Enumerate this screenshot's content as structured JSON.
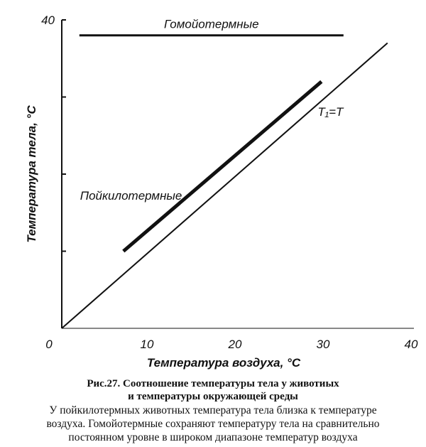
{
  "chart_data": {
    "type": "line",
    "xlabel": "Температура воздуха, °С",
    "ylabel": "Температура тела, °С",
    "xlim": [
      0,
      40
    ],
    "ylim": [
      0,
      40
    ],
    "xticks": [
      0,
      10,
      20,
      30,
      40
    ],
    "yticks": [
      40
    ],
    "yminor_ticks": [
      10,
      20,
      30
    ],
    "series": [
      {
        "name": "Гомойотермные",
        "color": "#111111",
        "width": 3,
        "x": [
          2,
          32
        ],
        "values": [
          38,
          38
        ]
      },
      {
        "name": "Пойкилотермные",
        "color": "#111111",
        "width": 5,
        "x": [
          7,
          29.5
        ],
        "values": [
          10,
          32
        ]
      },
      {
        "name": "T₁=T",
        "color": "#111111",
        "width": 2,
        "x": [
          0,
          37
        ],
        "values": [
          0,
          37
        ]
      }
    ]
  },
  "caption": {
    "title_lines": [
      "Рис.27. Соотношение температуры тела у животиых",
      "и температуры окружающей среды"
    ],
    "text_lines": [
      "У пойкилотермных животных температура тела близка к температуре",
      "воздуха. Гомойотермные сохраняют температуру тела на сравнительно",
      "постоянном уровне в широком диапазоне температур воздуха"
    ]
  }
}
